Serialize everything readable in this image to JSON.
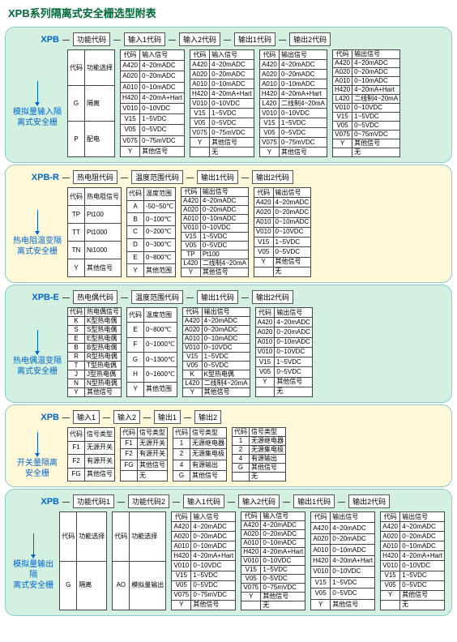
{
  "page_title": "XPB系列隔离式安全栅选型附表",
  "sections": [
    {
      "bg": "green",
      "model": "XPB",
      "side_label": "模拟量输入隔\n离式安全栅",
      "headers": [
        "功能代码",
        "输入1代码",
        "输入2代码",
        "输出1代码",
        "输出2代码"
      ],
      "tables": [
        {
          "cols": [
            "代码",
            "功能选择"
          ],
          "rows": [
            [
              "G",
              "隔离"
            ],
            [
              "P",
              "配电"
            ]
          ]
        },
        {
          "cols": [
            "代码",
            "输入信号"
          ],
          "rows": [
            [
              "A420",
              "4~20mADC"
            ],
            [
              "A020",
              "0~20mADC"
            ],
            [
              "A010",
              "0~10mADC"
            ],
            [
              "H420",
              "4~20mA+Hart"
            ],
            [
              "V010",
              "0~10VDC"
            ],
            [
              "V15",
              "1~5VDC"
            ],
            [
              "V05",
              "0~5VDC"
            ],
            [
              "V075",
              "0~75mVDC"
            ],
            [
              "Y",
              "其他信号"
            ]
          ]
        },
        {
          "cols": [
            "代码",
            "输入信号"
          ],
          "rows": [
            [
              "A420",
              "4~20mADC"
            ],
            [
              "A020",
              "0~20mADC"
            ],
            [
              "A010",
              "0~10mADC"
            ],
            [
              "H420",
              "4~20mA+Hart"
            ],
            [
              "V010",
              "0~10VDC"
            ],
            [
              "V15",
              "1~5VDC"
            ],
            [
              "V05",
              "0~5VDC"
            ],
            [
              "V075",
              "0~75mVDC"
            ],
            [
              "Y",
              "其他信号"
            ],
            [
              "",
              "无"
            ]
          ]
        },
        {
          "cols": [
            "代码",
            "输出信号"
          ],
          "rows": [
            [
              "A420",
              "4~20mADC"
            ],
            [
              "A020",
              "0~20mADC"
            ],
            [
              "A010",
              "0~10mADC"
            ],
            [
              "H420",
              "4~20mA+Hart"
            ],
            [
              "L420",
              "二线制4~20mA"
            ],
            [
              "V010",
              "0~10VDC"
            ],
            [
              "V15",
              "1~5VDC"
            ],
            [
              "V05",
              "0~5VDC"
            ],
            [
              "V075",
              "0~75mVDC"
            ],
            [
              "Y",
              "其他信号"
            ]
          ]
        },
        {
          "cols": [
            "代码",
            "输出信号"
          ],
          "rows": [
            [
              "A420",
              "4~20mADC"
            ],
            [
              "A020",
              "0~20mADC"
            ],
            [
              "A010",
              "0~10mADC"
            ],
            [
              "H420",
              "4~20mA+Hart"
            ],
            [
              "L420",
              "二线制4~20mA"
            ],
            [
              "V010",
              "0~10VDC"
            ],
            [
              "V15",
              "1~5VDC"
            ],
            [
              "V05",
              "0~5VDC"
            ],
            [
              "V075",
              "0~75mVDC"
            ],
            [
              "Y",
              "其他信号"
            ],
            [
              "",
              "无"
            ]
          ]
        }
      ]
    },
    {
      "bg": "yellow",
      "model": "XPB-R",
      "side_label": "热电阻温变隔\n离式安全栅",
      "headers": [
        "热电阻代码",
        "温度范围代码",
        "输出1代码",
        "输出2代码"
      ],
      "tables": [
        {
          "cols": [
            "代码",
            "热电阻信号"
          ],
          "rows": [
            [
              "TP",
              "Pt100"
            ],
            [
              "TT",
              "Pt1000"
            ],
            [
              "TN",
              "Ni1000"
            ],
            [
              "Y",
              "其他信号"
            ]
          ]
        },
        {
          "cols": [
            "代码",
            "温度范围"
          ],
          "rows": [
            [
              "A",
              "-50~50℃"
            ],
            [
              "B",
              "0~100℃"
            ],
            [
              "C",
              "0~200℃"
            ],
            [
              "D",
              "0~300℃"
            ],
            [
              "E",
              "0~800℃"
            ],
            [
              "Y",
              "其他范围"
            ]
          ]
        },
        {
          "cols": [
            "代码",
            "输出信号"
          ],
          "rows": [
            [
              "A420",
              "4~20mADC"
            ],
            [
              "A020",
              "0~20mADC"
            ],
            [
              "A010",
              "0~10mADC"
            ],
            [
              "V010",
              "0~10VDC"
            ],
            [
              "V15",
              "1~5VDC"
            ],
            [
              "V05",
              "0~5VDC"
            ],
            [
              "TP",
              "Pt100"
            ],
            [
              "L420",
              "二线制4~20mA"
            ],
            [
              "Y",
              "其他信号"
            ]
          ]
        },
        {
          "cols": [
            "代码",
            "输出信号"
          ],
          "rows": [
            [
              "A420",
              "4~20mADC"
            ],
            [
              "A020",
              "0~20mADC"
            ],
            [
              "A010",
              "0~10mADC"
            ],
            [
              "V010",
              "0~10VDC"
            ],
            [
              "V15",
              "1~5VDC"
            ],
            [
              "V05",
              "0~5VDC"
            ],
            [
              "Y",
              "其他信号"
            ],
            [
              "",
              "无"
            ]
          ]
        }
      ]
    },
    {
      "bg": "green",
      "model": "XPB-E",
      "side_label": "热电偶温变隔\n离式安全栅",
      "headers": [
        "热电偶代码",
        "温度范围代码",
        "输出1代码",
        "输出2代码"
      ],
      "tables": [
        {
          "cols": [
            "代码",
            "热电偶信号"
          ],
          "rows": [
            [
              "K",
              "K型热电偶"
            ],
            [
              "S",
              "S型热电偶"
            ],
            [
              "E",
              "E型热电偶"
            ],
            [
              "B",
              "B型热电偶"
            ],
            [
              "R",
              "R型热电偶"
            ],
            [
              "T",
              "T型热电偶"
            ],
            [
              "J",
              "J型热电偶"
            ],
            [
              "N",
              "N型热电偶"
            ],
            [
              "Y",
              "其他信号"
            ]
          ]
        },
        {
          "cols": [
            "代码",
            "温度范围"
          ],
          "rows": [
            [
              "E",
              "0~800℃"
            ],
            [
              "F",
              "0~1000℃"
            ],
            [
              "G",
              "0~1300℃"
            ],
            [
              "H",
              "0~1600℃"
            ],
            [
              "Y",
              "其他范围"
            ]
          ]
        },
        {
          "cols": [
            "代码",
            "输出信号"
          ],
          "rows": [
            [
              "A420",
              "4~20mADC"
            ],
            [
              "A020",
              "0~20mADC"
            ],
            [
              "A010",
              "0~10mADC"
            ],
            [
              "V010",
              "0~10VDC"
            ],
            [
              "V15",
              "1~5VDC"
            ],
            [
              "V05",
              "0~5VDC"
            ],
            [
              "K",
              "K型热电偶"
            ],
            [
              "L420",
              "二线制4~20mA"
            ],
            [
              "Y",
              "其他信号"
            ]
          ]
        },
        {
          "cols": [
            "代码",
            "输出信号"
          ],
          "rows": [
            [
              "A420",
              "4~20mADC"
            ],
            [
              "A020",
              "0~20mADC"
            ],
            [
              "A010",
              "0~10mADC"
            ],
            [
              "V010",
              "0~10VDC"
            ],
            [
              "V15",
              "1~5VDC"
            ],
            [
              "V05",
              "0~5VDC"
            ],
            [
              "Y",
              "其他信号"
            ],
            [
              "",
              "无"
            ]
          ]
        }
      ]
    },
    {
      "bg": "yellow",
      "model": "XPB",
      "side_label": "开关量隔离\n安全栅",
      "headers": [
        "输入1",
        "输入2",
        "输出1",
        "输出2"
      ],
      "tables": [
        {
          "cols": [
            "代码",
            "信号类型"
          ],
          "rows": [
            [
              "F1",
              "无源开关"
            ],
            [
              "F2",
              "有源开关"
            ],
            [
              "FG",
              "其他信号"
            ]
          ]
        },
        {
          "cols": [
            "代码",
            "信号类型"
          ],
          "rows": [
            [
              "F1",
              "无源开关"
            ],
            [
              "F2",
              "有源开关"
            ],
            [
              "FG",
              "其他信号"
            ],
            [
              "",
              "无"
            ]
          ]
        },
        {
          "cols": [
            "代码",
            "信号类型"
          ],
          "rows": [
            [
              "1",
              "无源继电器"
            ],
            [
              "2",
              "无源集电极"
            ],
            [
              "4",
              "有源输出"
            ],
            [
              "G",
              "其他信号"
            ]
          ]
        },
        {
          "cols": [
            "代码",
            "信号类型"
          ],
          "rows": [
            [
              "1",
              "无源继电器"
            ],
            [
              "2",
              "无源集电极"
            ],
            [
              "4",
              "有源输出"
            ],
            [
              "G",
              "其他信号"
            ],
            [
              "",
              "无"
            ]
          ]
        }
      ]
    },
    {
      "bg": "green",
      "model": "XPB",
      "side_label": "模拟量输出隔\n离式安全栅",
      "headers": [
        "功能代码1",
        "功能代码2",
        "输入1代码",
        "输入2代码",
        "输出1代码",
        "输出2代码"
      ],
      "tables": [
        {
          "cols": [
            "代码",
            "功能选择"
          ],
          "rows": [
            [
              "G",
              "隔离"
            ]
          ]
        },
        {
          "cols": [
            "代码",
            "功能选择"
          ],
          "rows": [
            [
              "AO",
              "模拟量输出"
            ]
          ]
        },
        {
          "cols": [
            "代码",
            "输入信号"
          ],
          "rows": [
            [
              "A420",
              "4~20mADC"
            ],
            [
              "A020",
              "0~20mADC"
            ],
            [
              "A010",
              "0~10mADC"
            ],
            [
              "H420",
              "4~20mA+Hart"
            ],
            [
              "V010",
              "0~10VDC"
            ],
            [
              "V15",
              "1~5VDC"
            ],
            [
              "V05",
              "0~5VDC"
            ],
            [
              "V075",
              "0~75mVDC"
            ],
            [
              "Y",
              "其他信号"
            ]
          ]
        },
        {
          "cols": [
            "代码",
            "输入信号"
          ],
          "rows": [
            [
              "A420",
              "4~20mADC"
            ],
            [
              "A020",
              "0~20mADC"
            ],
            [
              "A010",
              "0~10mADC"
            ],
            [
              "H420",
              "4~20mA+Hart"
            ],
            [
              "V010",
              "0~10VDC"
            ],
            [
              "V15",
              "1~5VDC"
            ],
            [
              "V05",
              "0~5VDC"
            ],
            [
              "V075",
              "0~75mVDC"
            ],
            [
              "Y",
              "其他信号"
            ],
            [
              "",
              "无"
            ]
          ]
        },
        {
          "cols": [
            "代码",
            "输出信号"
          ],
          "rows": [
            [
              "A420",
              "4~20mADC"
            ],
            [
              "A020",
              "0~20mADC"
            ],
            [
              "A010",
              "0~10mADC"
            ],
            [
              "H420",
              "4~20mA+Hart"
            ],
            [
              "V010",
              "0~10VDC"
            ],
            [
              "V15",
              "1~5VDC"
            ],
            [
              "V05",
              "0~5VDC"
            ],
            [
              "Y",
              "其他信号"
            ]
          ]
        },
        {
          "cols": [
            "代码",
            "输出信号"
          ],
          "rows": [
            [
              "A420",
              "4~20mADC"
            ],
            [
              "A020",
              "0~20mADC"
            ],
            [
              "A010",
              "0~10mADC"
            ],
            [
              "H420",
              "4~20mA+Hart"
            ],
            [
              "V010",
              "0~10VDC"
            ],
            [
              "V15",
              "1~5VDC"
            ],
            [
              "V05",
              "0~5VDC"
            ],
            [
              "Y",
              "其他信号"
            ],
            [
              "",
              "无"
            ]
          ]
        }
      ]
    }
  ]
}
